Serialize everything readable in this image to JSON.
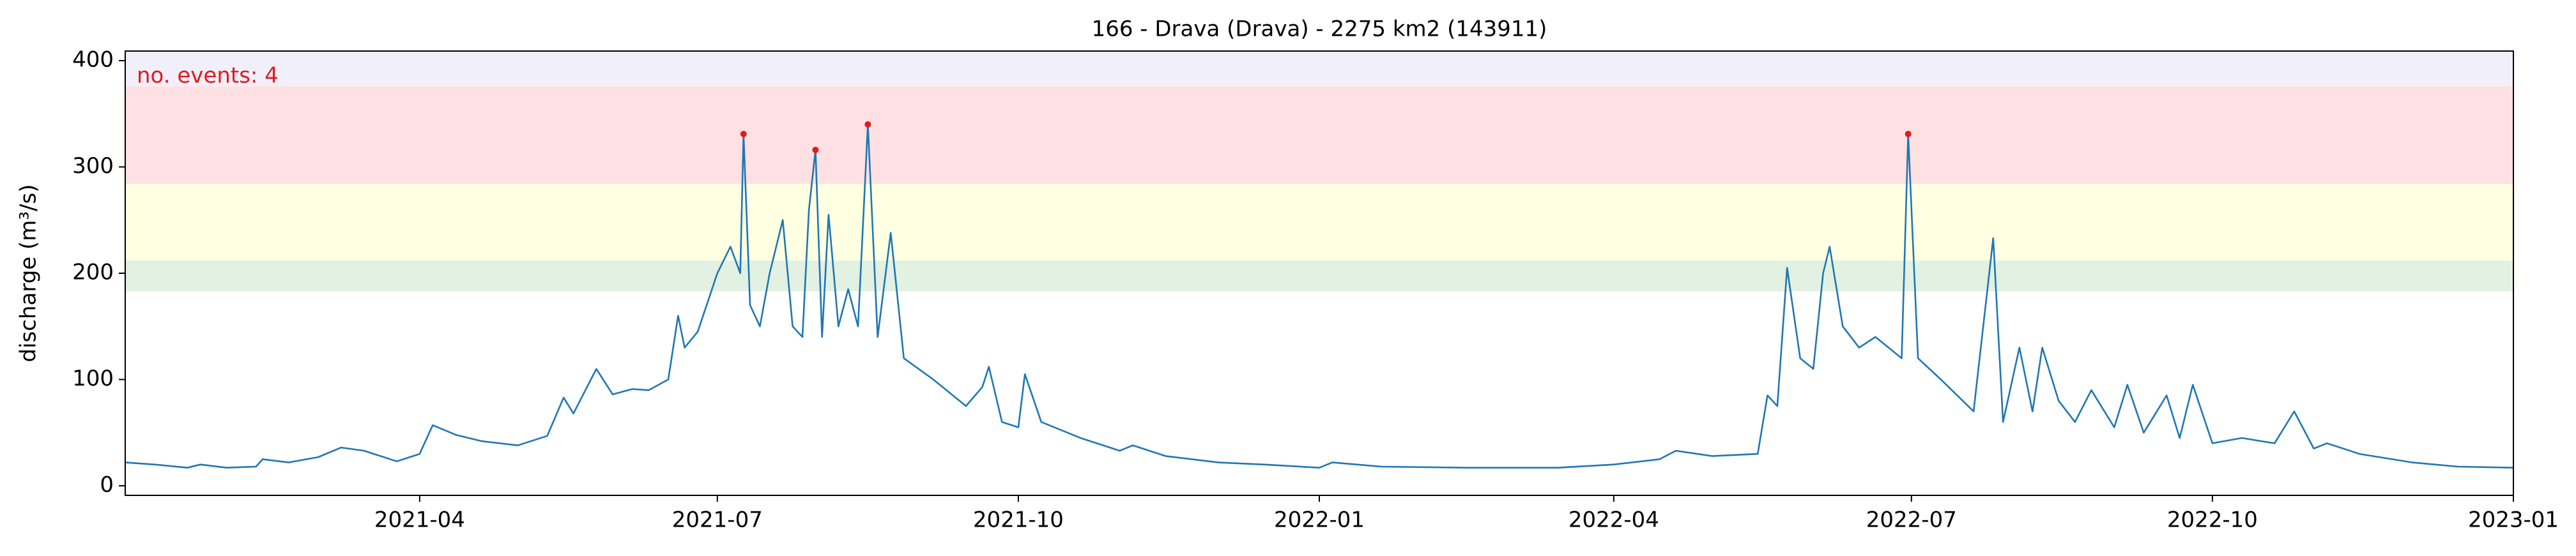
{
  "chart_data": {
    "type": "line",
    "title": "166 - Drava (Drava) - 2275 km2 (143911)",
    "y_label": "discharge (m³/s)",
    "annotation": "no. events: 4",
    "annotation_color": "#e41a1c",
    "x": [
      "2021-01-01",
      "2021-01-10",
      "2021-01-20",
      "2021-01-24",
      "2021-02-01",
      "2021-02-10",
      "2021-02-12",
      "2021-02-20",
      "2021-03-01",
      "2021-03-08",
      "2021-03-15",
      "2021-03-25",
      "2021-04-01",
      "2021-04-05",
      "2021-04-12",
      "2021-04-20",
      "2021-05-01",
      "2021-05-10",
      "2021-05-15",
      "2021-05-18",
      "2021-05-25",
      "2021-05-30",
      "2021-06-05",
      "2021-06-10",
      "2021-06-16",
      "2021-06-19",
      "2021-06-21",
      "2021-06-25",
      "2021-07-01",
      "2021-07-05",
      "2021-07-08",
      "2021-07-09",
      "2021-07-11",
      "2021-07-14",
      "2021-07-17",
      "2021-07-21",
      "2021-07-24",
      "2021-07-27",
      "2021-07-29",
      "2021-07-31",
      "2021-08-02",
      "2021-08-04",
      "2021-08-07",
      "2021-08-10",
      "2021-08-13",
      "2021-08-16",
      "2021-08-19",
      "2021-08-23",
      "2021-08-27",
      "2021-09-05",
      "2021-09-15",
      "2021-09-20",
      "2021-09-22",
      "2021-09-26",
      "2021-10-01",
      "2021-10-03",
      "2021-10-08",
      "2021-10-20",
      "2021-11-01",
      "2021-11-05",
      "2021-11-15",
      "2021-12-01",
      "2021-12-15",
      "2022-01-01",
      "2022-01-05",
      "2022-01-20",
      "2022-02-15",
      "2022-03-15",
      "2022-04-01",
      "2022-04-15",
      "2022-04-20",
      "2022-05-01",
      "2022-05-15",
      "2022-05-18",
      "2022-05-21",
      "2022-05-24",
      "2022-05-28",
      "2022-06-01",
      "2022-06-04",
      "2022-06-06",
      "2022-06-10",
      "2022-06-15",
      "2022-06-20",
      "2022-06-28",
      "2022-06-30",
      "2022-07-03",
      "2022-07-10",
      "2022-07-20",
      "2022-07-26",
      "2022-07-29",
      "2022-08-03",
      "2022-08-07",
      "2022-08-10",
      "2022-08-15",
      "2022-08-20",
      "2022-08-25",
      "2022-09-01",
      "2022-09-05",
      "2022-09-10",
      "2022-09-17",
      "2022-09-21",
      "2022-09-25",
      "2022-10-01",
      "2022-10-10",
      "2022-10-20",
      "2022-10-26",
      "2022-11-01",
      "2022-11-05",
      "2022-11-15",
      "2022-12-01",
      "2022-12-15",
      "2023-01-01"
    ],
    "series": [
      {
        "color": "#1f77b4",
        "values": [
          22,
          20,
          17,
          20,
          17,
          18,
          25,
          22,
          27,
          36,
          33,
          23,
          30,
          57,
          48,
          42,
          38,
          47,
          83,
          68,
          110,
          86,
          91,
          90,
          100,
          160,
          130,
          145,
          200,
          225,
          200,
          331,
          170,
          150,
          200,
          250,
          150,
          140,
          260,
          316,
          140,
          255,
          150,
          185,
          150,
          340,
          140,
          238,
          120,
          100,
          75,
          93,
          112,
          60,
          55,
          105,
          60,
          45,
          33,
          38,
          28,
          22,
          20,
          17,
          22,
          18,
          17,
          17,
          20,
          25,
          33,
          28,
          30,
          85,
          75,
          205,
          120,
          110,
          200,
          225,
          150,
          130,
          140,
          120,
          331,
          120,
          100,
          70,
          233,
          60,
          130,
          70,
          130,
          80,
          60,
          90,
          55,
          95,
          50,
          85,
          45,
          95,
          40,
          45,
          40,
          70,
          35,
          40,
          30,
          22,
          18,
          17
        ]
      }
    ],
    "events": {
      "color": "#e41a1c",
      "x": [
        "2021-07-09",
        "2021-07-31",
        "2021-08-16",
        "2022-06-30"
      ],
      "values": [
        331,
        316,
        340,
        331
      ]
    },
    "bands": [
      {
        "from": 183,
        "to": 212,
        "color": "#e2f1e2"
      },
      {
        "from": 212,
        "to": 284,
        "color": "#ffffe2"
      },
      {
        "from": 284,
        "to": 376,
        "color": "#ffe1e3"
      },
      {
        "from": 376,
        "to": 409,
        "color": "#f1effa"
      }
    ],
    "xlim": [
      "2021-01-01",
      "2023-01-01"
    ],
    "xticks": [
      {
        "value": "2021-04-01",
        "label": "2021-04"
      },
      {
        "value": "2021-07-01",
        "label": "2021-07"
      },
      {
        "value": "2021-10-01",
        "label": "2021-10"
      },
      {
        "value": "2022-01-01",
        "label": "2022-01"
      },
      {
        "value": "2022-04-01",
        "label": "2022-04"
      },
      {
        "value": "2022-07-01",
        "label": "2022-07"
      },
      {
        "value": "2022-10-01",
        "label": "2022-10"
      },
      {
        "value": "2023-01-01",
        "label": "2023-01"
      }
    ],
    "ylim": [
      -9,
      409
    ],
    "yticks": [
      0,
      100,
      200,
      300,
      400
    ]
  }
}
